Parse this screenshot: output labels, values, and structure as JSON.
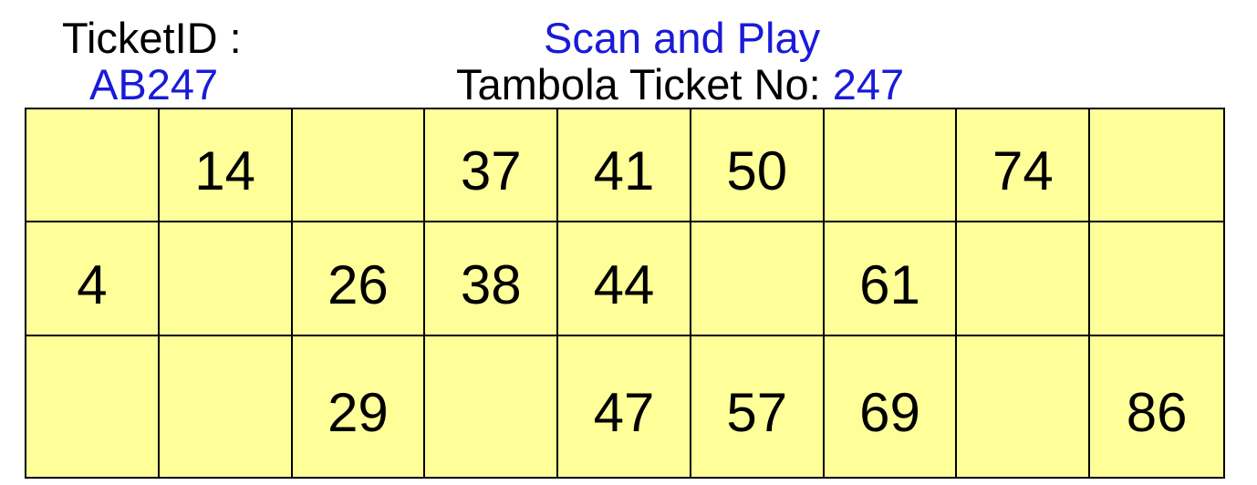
{
  "header": {
    "ticket_id_label": "TicketID :",
    "ticket_id_value": "AB247",
    "title": "Scan and Play",
    "subtitle_label": "Tambola Ticket No:",
    "subtitle_number": "247"
  },
  "colors": {
    "accent_blue": "#1a1ad8",
    "cell_background": "#ffff99",
    "grid_lines": "#000000"
  },
  "ticket": {
    "rows": [
      [
        "",
        "14",
        "",
        "37",
        "41",
        "50",
        "",
        "74",
        ""
      ],
      [
        "4",
        "",
        "26",
        "38",
        "44",
        "",
        "61",
        "",
        ""
      ],
      [
        "",
        "",
        "29",
        "",
        "47",
        "57",
        "69",
        "",
        "86"
      ]
    ]
  }
}
